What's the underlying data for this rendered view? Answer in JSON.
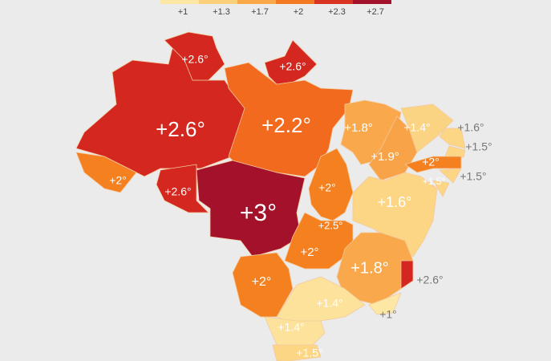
{
  "legend": [
    {
      "label": "+1",
      "color": "#fde7a4"
    },
    {
      "label": "+1.3",
      "color": "#fcd07a"
    },
    {
      "label": "+1.7",
      "color": "#f9a84a"
    },
    {
      "label": "+2",
      "color": "#f47a21"
    },
    {
      "label": "+2.3",
      "color": "#d93422"
    },
    {
      "label": "+2.7",
      "color": "#a3122a"
    }
  ],
  "regions": [
    {
      "label": "+2.6°",
      "color": "#d3271f"
    },
    {
      "label": "+2.6°",
      "color": "#d3271f"
    },
    {
      "label": "+2.6°",
      "color": "#d3271f"
    },
    {
      "label": "+2.2°",
      "color": "#f26a1e"
    },
    {
      "label": "+2°",
      "color": "#f4801f"
    },
    {
      "label": "+2.6°",
      "color": "#d3271f"
    },
    {
      "label": "+3°",
      "color": "#a3122a"
    },
    {
      "label": "+2°",
      "color": "#f4801f"
    },
    {
      "label": "+1.8°",
      "color": "#f9a94b"
    },
    {
      "label": "+1.9°",
      "color": "#f8a347"
    },
    {
      "label": "+1.4°",
      "color": "#fbd483"
    },
    {
      "label": "+1.6°",
      "color": "#fcd685"
    },
    {
      "label": "+1.5°",
      "color": "#fcd685"
    },
    {
      "label": "+2°",
      "color": "#f4801f"
    },
    {
      "label": "+1.5°",
      "color": "#fcd685"
    },
    {
      "label": "+1.5°",
      "color": "#fcd685"
    },
    {
      "label": "+1.6°",
      "color": "#fcd685"
    },
    {
      "label": "+2.5°",
      "color": "#d93422"
    },
    {
      "label": "+2°",
      "color": "#f4801f"
    },
    {
      "label": "+1.8°",
      "color": "#f9a94b"
    },
    {
      "label": "+2.6°",
      "color": "#d3271f"
    },
    {
      "label": "+2°",
      "color": "#f4801f"
    },
    {
      "label": "+1°",
      "color": "#fde7a4"
    },
    {
      "label": "+1.4°",
      "color": "#fde29b"
    },
    {
      "label": "+1.4°",
      "color": "#fde29b"
    },
    {
      "label": "+1.5°",
      "color": "#fcd685"
    }
  ]
}
